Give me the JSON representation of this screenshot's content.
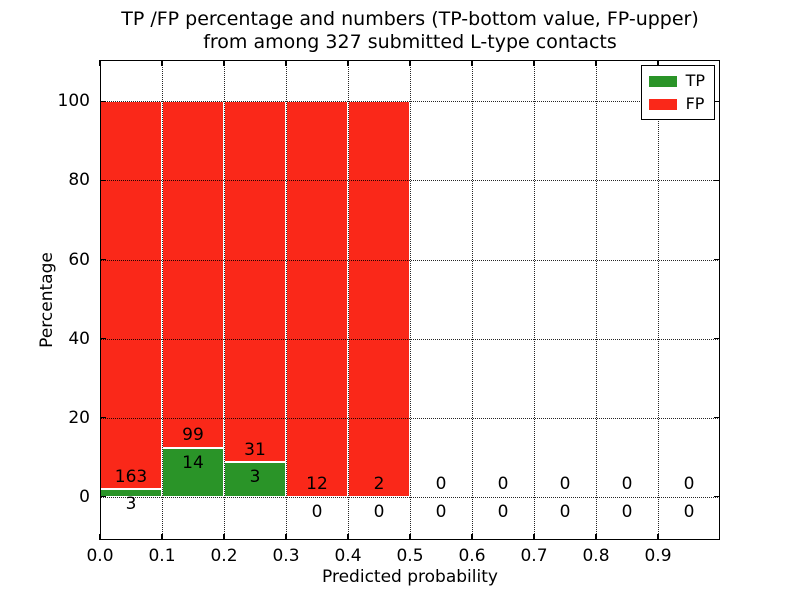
{
  "figure": {
    "title_line1": "TP /FP percentage and numbers (TP-bottom value, FP-upper)",
    "title_line2": "from among 327 submitted L-type contacts"
  },
  "chart_data": {
    "type": "bar",
    "stacked": true,
    "title": "TP /FP percentage and numbers (TP-bottom value, FP-upper) from among 327 submitted L-type contacts",
    "total_contacts": 327,
    "xlabel": "Predicted probability",
    "ylabel": "Percentage",
    "xlim": [
      0.0,
      1.0
    ],
    "ylim": [
      -11,
      110.5
    ],
    "grid": "dotted",
    "bin_width": 0.1,
    "xticks": [
      {
        "value": 0.0,
        "label": "0.0"
      },
      {
        "value": 0.1,
        "label": "0.1"
      },
      {
        "value": 0.2,
        "label": "0.2"
      },
      {
        "value": 0.3,
        "label": "0.3"
      },
      {
        "value": 0.4,
        "label": "0.4"
      },
      {
        "value": 0.5,
        "label": "0.5"
      },
      {
        "value": 0.6,
        "label": "0.6"
      },
      {
        "value": 0.7,
        "label": "0.7"
      },
      {
        "value": 0.8,
        "label": "0.8"
      },
      {
        "value": 0.9,
        "label": "0.9"
      }
    ],
    "yticks": [
      {
        "value": 0,
        "label": "0"
      },
      {
        "value": 20,
        "label": "20"
      },
      {
        "value": 40,
        "label": "40"
      },
      {
        "value": 60,
        "label": "60"
      },
      {
        "value": 80,
        "label": "80"
      },
      {
        "value": 100,
        "label": "100"
      }
    ],
    "bins": [
      {
        "x0": 0.0,
        "x1": 0.1,
        "tp_count": 3,
        "fp_count": 163,
        "tp_pct": 1.8,
        "fp_pct": 98.2,
        "has_bar": true
      },
      {
        "x0": 0.1,
        "x1": 0.2,
        "tp_count": 14,
        "fp_count": 99,
        "tp_pct": 12.4,
        "fp_pct": 87.6,
        "has_bar": true
      },
      {
        "x0": 0.2,
        "x1": 0.3,
        "tp_count": 3,
        "fp_count": 31,
        "tp_pct": 8.8,
        "fp_pct": 91.2,
        "has_bar": true
      },
      {
        "x0": 0.3,
        "x1": 0.4,
        "tp_count": 0,
        "fp_count": 12,
        "tp_pct": 0,
        "fp_pct": 100,
        "has_bar": true
      },
      {
        "x0": 0.4,
        "x1": 0.5,
        "tp_count": 0,
        "fp_count": 2,
        "tp_pct": 0,
        "fp_pct": 100,
        "has_bar": true
      },
      {
        "x0": 0.5,
        "x1": 0.6,
        "tp_count": 0,
        "fp_count": 0,
        "tp_pct": 0,
        "fp_pct": 0,
        "has_bar": false
      },
      {
        "x0": 0.6,
        "x1": 0.7,
        "tp_count": 0,
        "fp_count": 0,
        "tp_pct": 0,
        "fp_pct": 0,
        "has_bar": false
      },
      {
        "x0": 0.7,
        "x1": 0.8,
        "tp_count": 0,
        "fp_count": 0,
        "tp_pct": 0,
        "fp_pct": 0,
        "has_bar": false
      },
      {
        "x0": 0.8,
        "x1": 0.9,
        "tp_count": 0,
        "fp_count": 0,
        "tp_pct": 0,
        "fp_pct": 0,
        "has_bar": false
      },
      {
        "x0": 0.9,
        "x1": 1.0,
        "tp_count": 0,
        "fp_count": 0,
        "tp_pct": 0,
        "fp_pct": 0,
        "has_bar": false
      }
    ],
    "annotation_offsets": {
      "fp_label_dy": 3.1,
      "tp_label_dy": -3.8
    },
    "legend": {
      "position": "upper right",
      "entries": [
        {
          "label": "TP",
          "color": "#2a9428"
        },
        {
          "label": "FP",
          "color": "#fa2819"
        }
      ]
    },
    "colors": {
      "tp_bar": "#2a9428",
      "fp_bar": "#fa2819",
      "bar_edge": "#ffffff",
      "grid": "#000000",
      "text": "#000000",
      "background": "#ffffff"
    }
  }
}
